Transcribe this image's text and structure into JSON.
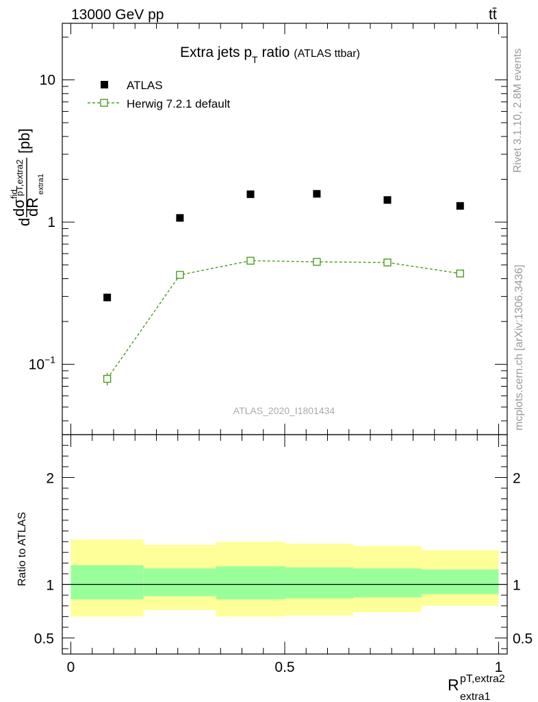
{
  "header": {
    "left": "13000 GeV pp",
    "right": "tt̄"
  },
  "side": {
    "rivet": "Rivet 3.1.10,  2.8M events",
    "mcplots": "mcplots.cern.ch [arXiv:1306.3436]"
  },
  "colors": {
    "atlas": "#000000",
    "herwig": "#4a9a1f",
    "band_outer": "#ffff99",
    "band_inner": "#99ff99"
  },
  "chart_data": [
    {
      "type": "scatter",
      "panel": "main",
      "title": "Extra jets p",
      "title_sub": "T",
      "title_suffix": " ratio",
      "title_small": "(ATLAS ttbar)",
      "yscale": "log",
      "ylim": [
        0.032,
        25
      ],
      "xlim": [
        -0.02,
        1.02
      ],
      "ylabel": {
        "d": "d",
        "sigma": "dσ",
        "fid": "fid",
        "pT": "pT,extra2",
        "extra1": "extra1",
        "dR": "dR",
        "unit": "[pb]"
      },
      "yticks": [
        {
          "value": 0.1,
          "base": "10",
          "exp": "−1"
        },
        {
          "value": 1,
          "label": "1"
        },
        {
          "value": 10,
          "label": "10"
        }
      ],
      "watermark": "ATLAS_2020_I1801434",
      "legend_position": "top-left",
      "series": [
        {
          "name": "ATLAS",
          "marker": "filled-square",
          "x": [
            0.085,
            0.255,
            0.42,
            0.575,
            0.74,
            0.91
          ],
          "y": [
            0.295,
            1.07,
            1.57,
            1.58,
            1.43,
            1.3
          ]
        },
        {
          "name": "Herwig 7.2.1 default",
          "marker": "open-square-dashed-line",
          "x": [
            0.085,
            0.255,
            0.42,
            0.575,
            0.74,
            0.91
          ],
          "y": [
            0.079,
            0.425,
            0.535,
            0.525,
            0.52,
            0.435
          ],
          "yerr": [
            0.008,
            0.015,
            0.015,
            0.015,
            0.015,
            0.015
          ]
        }
      ]
    },
    {
      "type": "area",
      "panel": "ratio",
      "ylabel": "Ratio to ATLAS",
      "xlabel_main": "R",
      "xlabel_sup": "pT,extra2",
      "xlabel_sub": "extra1",
      "ylim": [
        0.35,
        2.4
      ],
      "xlim": [
        -0.02,
        1.02
      ],
      "yticks": [
        0.5,
        1,
        2
      ],
      "ytick_labels": [
        "0.5",
        "1",
        "2"
      ],
      "xticks": [
        0,
        0.5,
        1
      ],
      "xtick_labels": [
        "0",
        "0.5",
        "1"
      ],
      "bins": [
        {
          "x0": 0.0,
          "x1": 0.17,
          "outer": [
            0.7,
            1.42
          ],
          "inner": [
            0.86,
            1.18
          ]
        },
        {
          "x0": 0.17,
          "x1": 0.34,
          "outer": [
            0.76,
            1.37
          ],
          "inner": [
            0.89,
            1.15
          ]
        },
        {
          "x0": 0.34,
          "x1": 0.5,
          "outer": [
            0.7,
            1.4
          ],
          "inner": [
            0.86,
            1.17
          ]
        },
        {
          "x0": 0.5,
          "x1": 0.66,
          "outer": [
            0.71,
            1.38
          ],
          "inner": [
            0.87,
            1.16
          ]
        },
        {
          "x0": 0.66,
          "x1": 0.82,
          "outer": [
            0.74,
            1.36
          ],
          "inner": [
            0.88,
            1.15
          ]
        },
        {
          "x0": 0.82,
          "x1": 1.0,
          "outer": [
            0.8,
            1.32
          ],
          "inner": [
            0.91,
            1.14
          ]
        }
      ],
      "reference": 1
    }
  ]
}
